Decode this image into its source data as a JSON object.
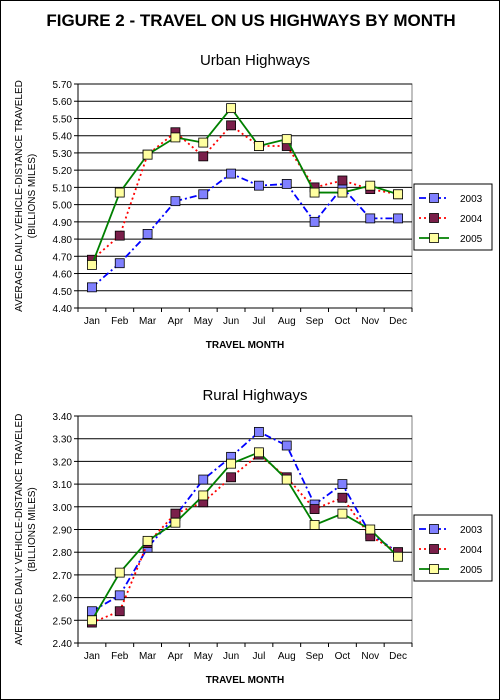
{
  "figure_title": "FIGURE 2 - TRAVEL ON US HIGHWAYS BY MONTH",
  "chart_data": [
    {
      "type": "line",
      "title": "Urban Highways",
      "xlabel": "TRAVEL MONTH",
      "ylabel_line1": "AVERAGE DAILY VEHICLE-DISTANCE TRAVELED",
      "ylabel_line2": "(BILLIONS MILES)",
      "categories": [
        "Jan",
        "Feb",
        "Mar",
        "Apr",
        "May",
        "Jun",
        "Jul",
        "Aug",
        "Sep",
        "Oct",
        "Nov",
        "Dec"
      ],
      "ylim": [
        4.4,
        5.7
      ],
      "yticks": [
        "4.40",
        "4.50",
        "4.60",
        "4.70",
        "4.80",
        "4.90",
        "5.00",
        "5.10",
        "5.20",
        "5.30",
        "5.40",
        "5.50",
        "5.60",
        "5.70"
      ],
      "grid": true,
      "legend_position": "right",
      "series": [
        {
          "name": "2003",
          "color": "#0000ff",
          "marker": "#8080ff",
          "dash": "dashdot",
          "values": [
            4.52,
            4.66,
            4.83,
            5.02,
            5.06,
            5.18,
            5.11,
            5.12,
            4.9,
            5.1,
            4.92,
            4.92
          ]
        },
        {
          "name": "2004",
          "color": "#ff0000",
          "marker": "#7a1f4a",
          "dash": "dotted",
          "values": [
            4.68,
            4.82,
            5.29,
            5.42,
            5.28,
            5.46,
            5.34,
            5.34,
            5.1,
            5.14,
            5.09,
            5.06
          ]
        },
        {
          "name": "2005",
          "color": "#008000",
          "marker": "#ffffa0",
          "dash": "solid",
          "values": [
            4.65,
            5.07,
            5.29,
            5.39,
            5.36,
            5.56,
            5.34,
            5.38,
            5.07,
            5.07,
            5.11,
            5.06
          ]
        }
      ]
    },
    {
      "type": "line",
      "title": "Rural Highways",
      "xlabel": "TRAVEL MONTH",
      "ylabel_line1": "AVERAGE DAILY VEHICLE-DISTANCE TRAVELED",
      "ylabel_line2": "(BILLIONS MILES)",
      "categories": [
        "Jan",
        "Feb",
        "Mar",
        "Apr",
        "May",
        "Jun",
        "Jul",
        "Aug",
        "Sep",
        "Oct",
        "Nov",
        "Dec"
      ],
      "ylim": [
        2.4,
        3.4
      ],
      "yticks": [
        "2.40",
        "2.50",
        "2.60",
        "2.70",
        "2.80",
        "2.90",
        "3.00",
        "3.10",
        "3.20",
        "3.30",
        "3.40"
      ],
      "grid": true,
      "legend_position": "right",
      "series": [
        {
          "name": "2003",
          "color": "#0000ff",
          "marker": "#8080ff",
          "dash": "dashdot",
          "values": [
            2.54,
            2.61,
            2.82,
            2.96,
            3.12,
            3.22,
            3.33,
            3.27,
            3.01,
            3.1,
            2.88,
            2.8
          ]
        },
        {
          "name": "2004",
          "color": "#ff0000",
          "marker": "#7a1f4a",
          "dash": "dotted",
          "values": [
            2.49,
            2.54,
            2.84,
            2.97,
            3.02,
            3.13,
            3.23,
            3.13,
            2.99,
            3.04,
            2.87,
            2.8
          ]
        },
        {
          "name": "2005",
          "color": "#008000",
          "marker": "#ffffa0",
          "dash": "solid",
          "values": [
            2.5,
            2.71,
            2.85,
            2.93,
            3.05,
            3.19,
            3.24,
            3.12,
            2.92,
            2.97,
            2.9,
            2.78
          ]
        }
      ]
    }
  ]
}
